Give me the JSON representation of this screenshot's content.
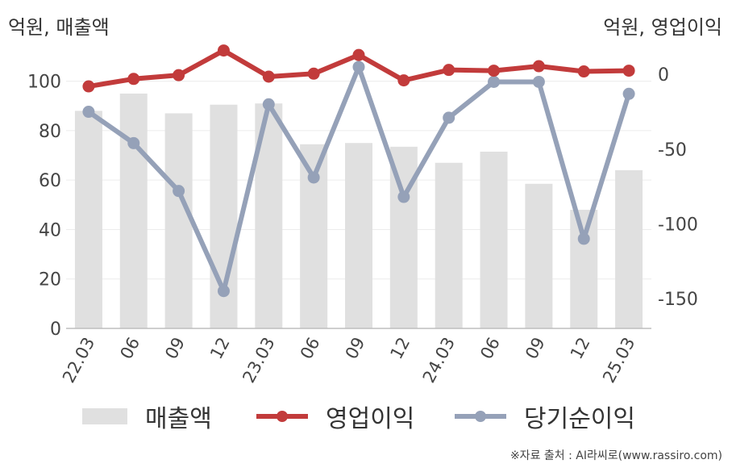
{
  "units": {
    "left": "억원, 매출액",
    "right": "억원, 영업이익"
  },
  "source": "※자료 출처 : AI라씨로(www.rassiro.com)",
  "chart_data": {
    "type": "bar+line",
    "categories": [
      "22.03",
      "06",
      "09",
      "12",
      "23.03",
      "06",
      "09",
      "12",
      "24.03",
      "06",
      "09",
      "12",
      "25.03"
    ],
    "left_axis": {
      "ylim": [
        0,
        110
      ],
      "ticks": [
        0,
        20,
        40,
        60,
        80,
        100
      ]
    },
    "right_axis": {
      "ylim": [
        -170,
        12
      ],
      "ticks": [
        0,
        -50,
        -100,
        -150
      ]
    },
    "series": [
      {
        "name": "매출액",
        "kind": "bar",
        "axis": "left",
        "color": "#e0e0e0",
        "values": [
          88,
          95,
          87,
          90.5,
          91,
          74.5,
          75,
          73.5,
          67,
          71.5,
          58.5,
          48,
          64
        ]
      },
      {
        "name": "영업이익",
        "kind": "line",
        "axis": "right",
        "color": "#c23b3b",
        "values": [
          -8,
          -3,
          -0.5,
          16,
          -1.5,
          0.5,
          13,
          -4,
          3,
          2.5,
          5.5,
          2,
          2.5
        ]
      },
      {
        "name": "당기순이익",
        "kind": "line",
        "axis": "right",
        "color": "#95a1b8",
        "values": [
          -25,
          -46,
          -78,
          -145,
          -20,
          -69,
          5,
          -82,
          -29,
          -5,
          -5,
          -110,
          -13
        ]
      }
    ],
    "legend": "bottom",
    "grid": true
  }
}
